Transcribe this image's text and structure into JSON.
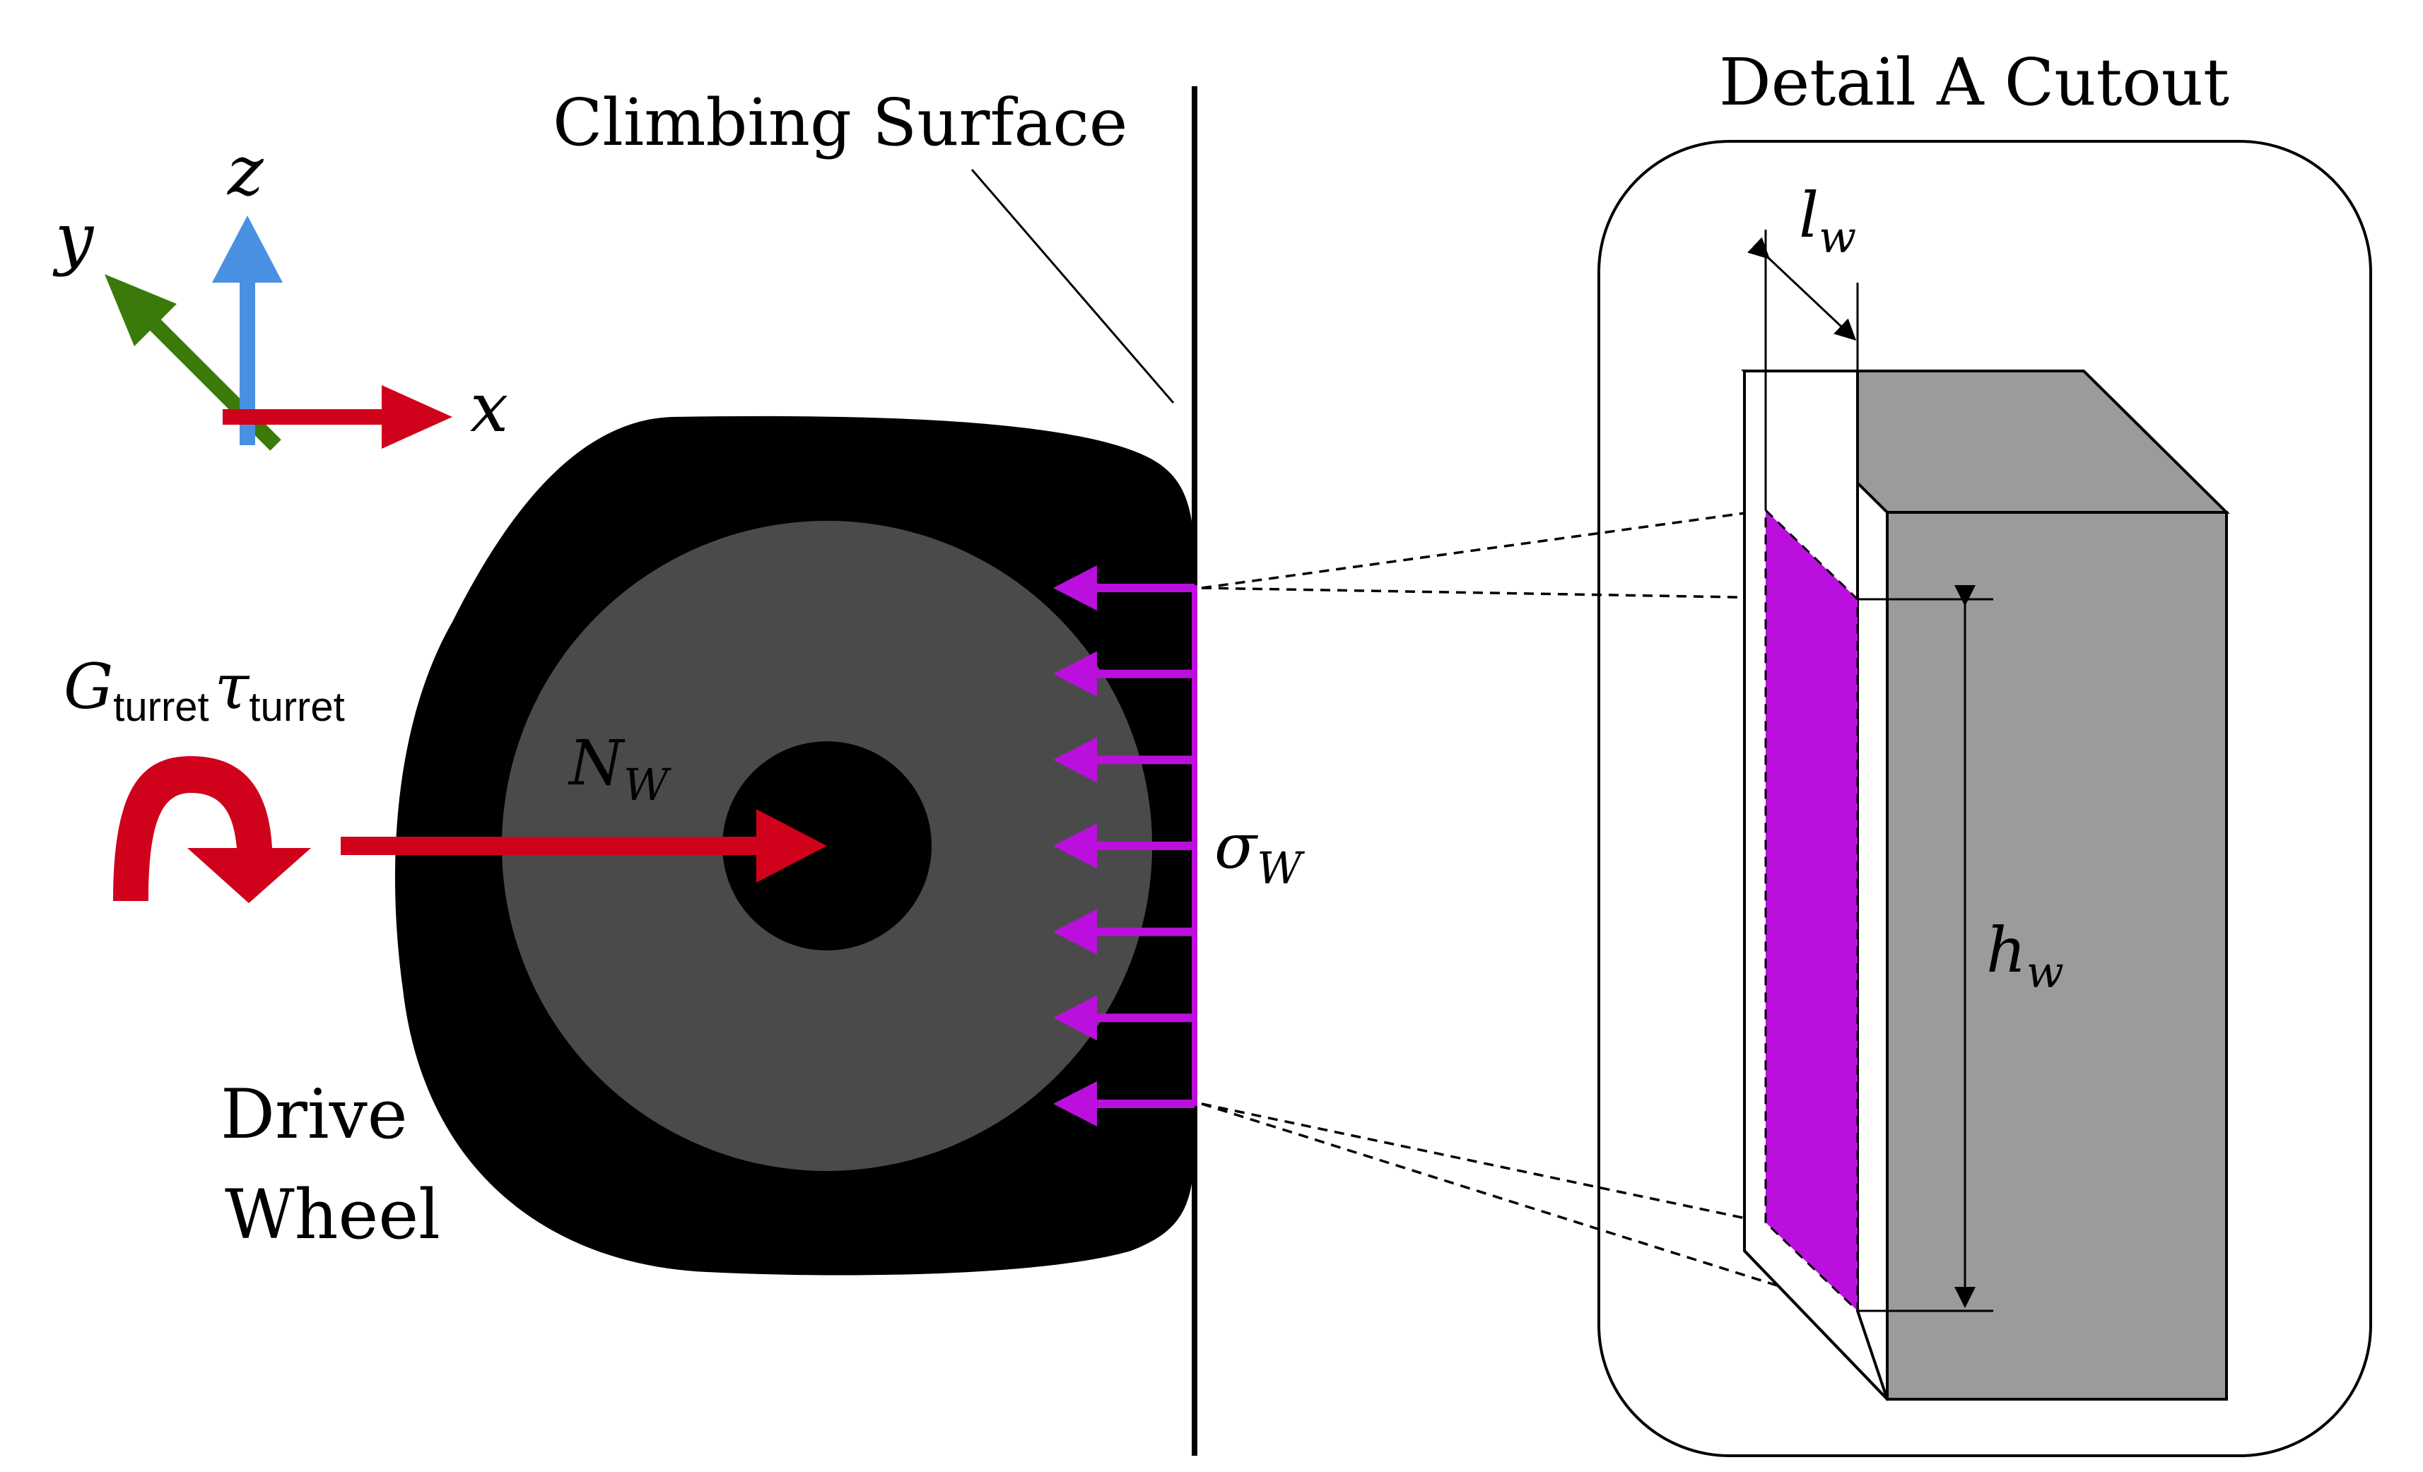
{
  "labels": {
    "climbing_surface": "Climbing Surface",
    "detail_title": "Detail A Cutout",
    "drive": "Drive",
    "wheel": "Wheel",
    "axis_x": "x",
    "axis_y": "y",
    "axis_z": "z",
    "torque_g": "G",
    "torque_g_sub": "turret",
    "torque_tau": "τ",
    "torque_tau_sub": "turret",
    "normal_force": "N",
    "normal_force_sub": "W",
    "stress": "σ",
    "stress_sub": "W",
    "width_l": "l",
    "width_l_sub": "w",
    "height_h": "h",
    "height_h_sub": "w"
  },
  "colors": {
    "tire": "#000000",
    "hub": "#4a4a4a",
    "force_red": "#d0021b",
    "stress_magenta": "#bb10dd",
    "axis_x": "#d0021b",
    "axis_y": "#3a7a0a",
    "axis_z": "#4a90e2",
    "block_gray": "#9b9b9b"
  },
  "icons": {
    "torque": "curved-arrow-icon"
  }
}
